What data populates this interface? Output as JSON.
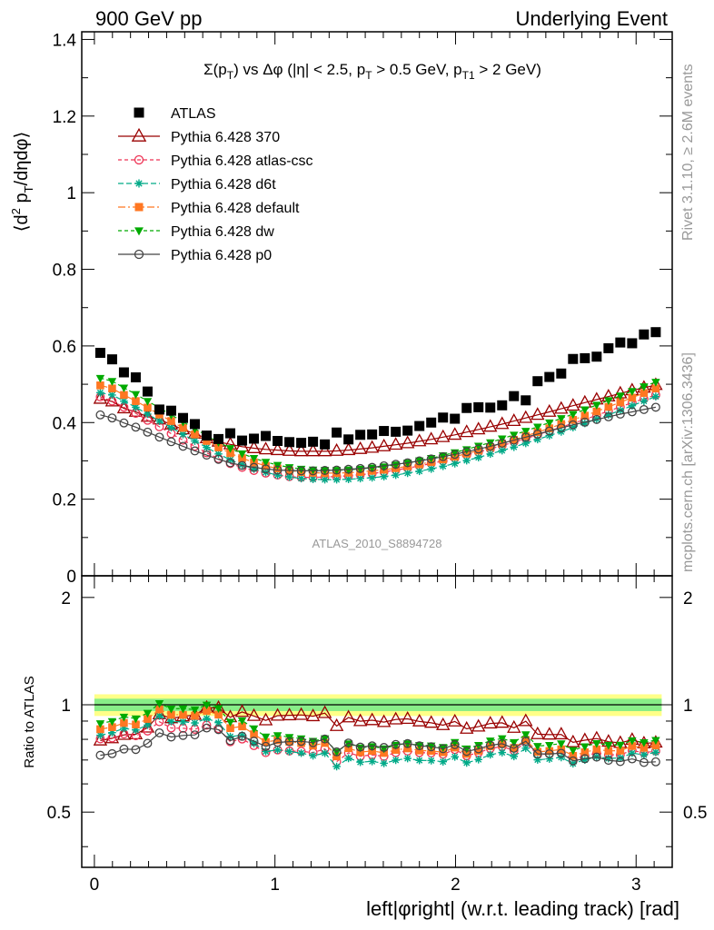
{
  "header": {
    "left": "900 GeV pp",
    "right": "Underlying Event"
  },
  "side_labels": {
    "rivet": "Rivet 3.1.10, ≥ 2.6M events",
    "mcplots": "mcplots.cern.ch [arXiv:1306.3436]"
  },
  "watermark": "ATLAS_2010_S8894728",
  "chart_data": [
    {
      "type": "scatter",
      "title": "Σ(p_T) vs Δφ (|η| < 2.5, p_T > 0.5 GeV, p_T1 > 2 GeV)",
      "ylabel": "⟨d² p_T/dηdφ⟩",
      "xlabel": "left|φright| (w.r.t. leading track) [rad]",
      "xlim": [
        -0.07,
        3.2
      ],
      "ylim": [
        0,
        1.42
      ],
      "yticks": [
        "0",
        "0.2",
        "0.4",
        "0.6",
        "0.8",
        "1",
        "1.2",
        "1.4"
      ],
      "xticks": [
        "0",
        "1",
        "2",
        "3"
      ],
      "legend_position": "top-left",
      "grid": false,
      "x": [
        0.0327,
        0.0982,
        0.1636,
        0.2291,
        0.2945,
        0.36,
        0.4254,
        0.4909,
        0.5563,
        0.6218,
        0.6872,
        0.7527,
        0.8181,
        0.8836,
        0.949,
        1.0145,
        1.0799,
        1.1454,
        1.2108,
        1.2763,
        1.3417,
        1.4072,
        1.4726,
        1.5381,
        1.6035,
        1.669,
        1.7344,
        1.7999,
        1.8653,
        1.9308,
        1.9962,
        2.0617,
        2.1271,
        2.1926,
        2.258,
        2.3235,
        2.3889,
        2.4544,
        2.5198,
        2.5853,
        2.6507,
        2.7162,
        2.7816,
        2.8471,
        2.9125,
        2.978,
        3.0434,
        3.1089
      ],
      "series": [
        {
          "name": "ATLAS",
          "color": "#000000",
          "marker": "filled-square",
          "values": [
            0.582,
            0.565,
            0.531,
            0.518,
            0.481,
            0.434,
            0.431,
            0.412,
            0.396,
            0.366,
            0.357,
            0.372,
            0.353,
            0.358,
            0.365,
            0.352,
            0.349,
            0.347,
            0.35,
            0.343,
            0.374,
            0.356,
            0.368,
            0.369,
            0.378,
            0.376,
            0.379,
            0.391,
            0.4,
            0.413,
            0.41,
            0.438,
            0.44,
            0.439,
            0.445,
            0.469,
            0.458,
            0.508,
            0.519,
            0.528,
            0.566,
            0.568,
            0.572,
            0.594,
            0.609,
            0.607,
            0.63,
            0.636
          ]
        },
        {
          "name": "Pythia 6.428 370",
          "color": "#990000",
          "marker": "open-triangle",
          "values": [
            0.462,
            0.455,
            0.437,
            0.428,
            0.415,
            0.408,
            0.395,
            0.382,
            0.371,
            0.359,
            0.35,
            0.343,
            0.337,
            0.333,
            0.33,
            0.328,
            0.326,
            0.325,
            0.325,
            0.325,
            0.326,
            0.328,
            0.331,
            0.334,
            0.338,
            0.342,
            0.346,
            0.351,
            0.356,
            0.362,
            0.368,
            0.375,
            0.382,
            0.389,
            0.396,
            0.404,
            0.412,
            0.42,
            0.428,
            0.436,
            0.444,
            0.452,
            0.46,
            0.468,
            0.476,
            0.484,
            0.491,
            0.498
          ]
        },
        {
          "name": "Pythia 6.428 atlas-csc",
          "color": "#ee3355",
          "marker": "open-circle",
          "values": [
            0.467,
            0.456,
            0.44,
            0.424,
            0.406,
            0.389,
            0.371,
            0.354,
            0.338,
            0.321,
            0.306,
            0.293,
            0.283,
            0.275,
            0.268,
            0.263,
            0.259,
            0.257,
            0.257,
            0.258,
            0.259,
            0.261,
            0.264,
            0.267,
            0.271,
            0.276,
            0.281,
            0.287,
            0.293,
            0.3,
            0.307,
            0.315,
            0.323,
            0.331,
            0.34,
            0.349,
            0.358,
            0.368,
            0.378,
            0.388,
            0.398,
            0.408,
            0.419,
            0.43,
            0.441,
            0.452,
            0.462,
            0.472
          ]
        },
        {
          "name": "Pythia 6.428 d6t",
          "color": "#00aa88",
          "marker": "asterisk",
          "values": [
            0.478,
            0.472,
            0.456,
            0.44,
            0.422,
            0.404,
            0.387,
            0.369,
            0.352,
            0.335,
            0.318,
            0.303,
            0.29,
            0.279,
            0.27,
            0.263,
            0.258,
            0.254,
            0.252,
            0.251,
            0.251,
            0.252,
            0.254,
            0.256,
            0.259,
            0.263,
            0.268,
            0.273,
            0.279,
            0.286,
            0.293,
            0.301,
            0.309,
            0.318,
            0.327,
            0.336,
            0.346,
            0.356,
            0.366,
            0.376,
            0.387,
            0.398,
            0.409,
            0.42,
            0.432,
            0.444,
            0.456,
            0.468
          ]
        },
        {
          "name": "Pythia 6.428 default",
          "color": "#ff7722",
          "marker": "filled-square",
          "values": [
            0.497,
            0.489,
            0.472,
            0.456,
            0.439,
            0.421,
            0.404,
            0.386,
            0.369,
            0.352,
            0.335,
            0.32,
            0.307,
            0.296,
            0.287,
            0.28,
            0.275,
            0.271,
            0.269,
            0.268,
            0.268,
            0.269,
            0.271,
            0.274,
            0.277,
            0.281,
            0.286,
            0.291,
            0.297,
            0.304,
            0.311,
            0.319,
            0.327,
            0.336,
            0.345,
            0.355,
            0.365,
            0.375,
            0.385,
            0.396,
            0.407,
            0.418,
            0.429,
            0.441,
            0.453,
            0.465,
            0.477,
            0.489
          ]
        },
        {
          "name": "Pythia 6.428 dw",
          "color": "#00aa00",
          "marker": "filled-triangle-down",
          "values": [
            0.516,
            0.508,
            0.491,
            0.474,
            0.456,
            0.438,
            0.42,
            0.402,
            0.384,
            0.366,
            0.349,
            0.333,
            0.319,
            0.307,
            0.297,
            0.289,
            0.283,
            0.279,
            0.277,
            0.276,
            0.276,
            0.277,
            0.279,
            0.282,
            0.285,
            0.29,
            0.295,
            0.301,
            0.307,
            0.314,
            0.322,
            0.33,
            0.339,
            0.348,
            0.358,
            0.368,
            0.378,
            0.389,
            0.4,
            0.411,
            0.422,
            0.434,
            0.446,
            0.458,
            0.47,
            0.482,
            0.494,
            0.506
          ]
        },
        {
          "name": "Pythia 6.428 p0",
          "color": "#444444",
          "marker": "open-circle",
          "values": [
            0.42,
            0.412,
            0.399,
            0.388,
            0.375,
            0.362,
            0.35,
            0.338,
            0.326,
            0.315,
            0.304,
            0.295,
            0.288,
            0.283,
            0.279,
            0.276,
            0.275,
            0.274,
            0.274,
            0.275,
            0.276,
            0.278,
            0.28,
            0.283,
            0.287,
            0.291,
            0.295,
            0.3,
            0.305,
            0.311,
            0.317,
            0.324,
            0.331,
            0.338,
            0.346,
            0.354,
            0.362,
            0.37,
            0.378,
            0.386,
            0.394,
            0.401,
            0.408,
            0.415,
            0.422,
            0.428,
            0.434,
            0.44
          ]
        }
      ]
    },
    {
      "type": "scatter",
      "ylabel": "Ratio to ATLAS",
      "ylim": [
        0.35,
        2.3
      ],
      "yticks": [
        "0.5",
        "1",
        "2"
      ],
      "reference_band": {
        "inner": 0.04,
        "outer": 0.07,
        "inner_color": "#88ee88",
        "outer_color": "#ffff88"
      }
    }
  ]
}
